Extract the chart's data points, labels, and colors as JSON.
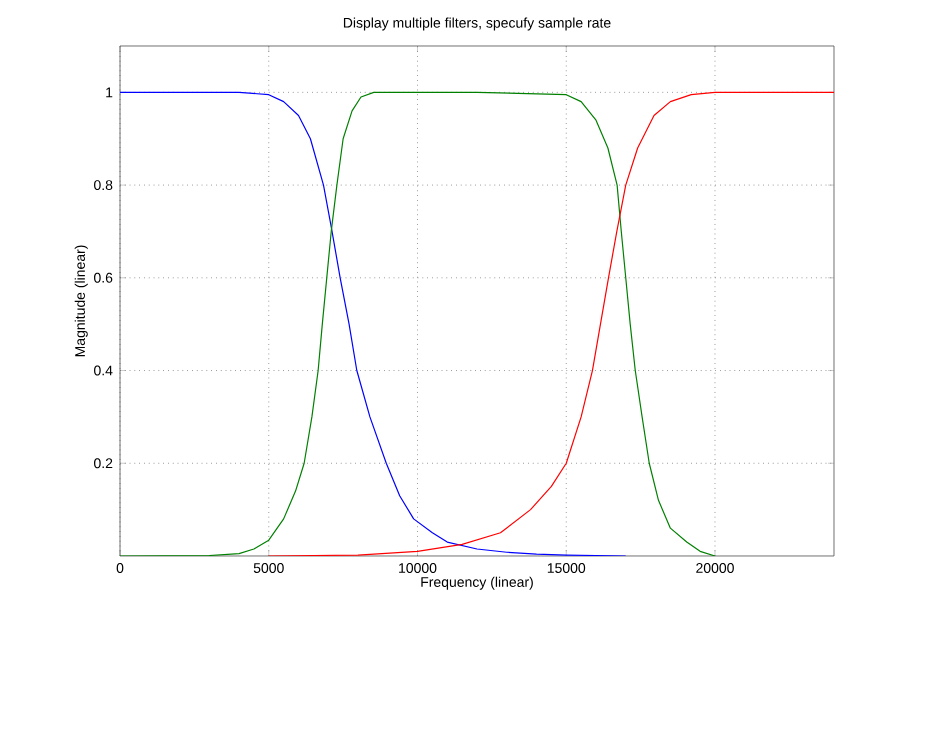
{
  "chart_data": {
    "type": "line",
    "title": "Display multiple filters, specufy sample rate",
    "xlabel": "Frequency (linear)",
    "ylabel": "Magnitude (linear)",
    "xlim": [
      0,
      24000
    ],
    "ylim": [
      0,
      1.1
    ],
    "xticks": [
      0,
      5000,
      10000,
      15000,
      20000
    ],
    "yticks": [
      0.2,
      0.4,
      0.6,
      0.8,
      1
    ],
    "grid": true,
    "legend": false,
    "marker": "none",
    "line_style": "solid",
    "series": [
      {
        "color": "#0000ff",
        "x": [
          0,
          2000,
          4000,
          5000,
          5500,
          6000,
          6400,
          6840,
          7100,
          7400,
          7700,
          7960,
          8400,
          8950,
          9400,
          9870,
          10500,
          11000,
          12000,
          13000,
          14000,
          15000,
          17000
        ],
        "values": [
          1,
          1,
          1,
          0.995,
          0.98,
          0.95,
          0.9,
          0.8,
          0.71,
          0.6,
          0.5,
          0.4,
          0.3,
          0.2,
          0.13,
          0.08,
          0.05,
          0.03,
          0.015,
          0.008,
          0.004,
          0.002,
          0
        ]
      },
      {
        "color": "#008000",
        "x": [
          0,
          3000,
          4000,
          4500,
          5000,
          5500,
          5900,
          6190,
          6450,
          6660,
          6800,
          6950,
          7100,
          7290,
          7500,
          7800,
          8100,
          8530,
          9000,
          12000,
          15000,
          15500,
          16000,
          16400,
          16710,
          16850,
          17000,
          17150,
          17320,
          17550,
          17790,
          18100,
          18500,
          19050,
          19500,
          20000
        ],
        "values": [
          0,
          0.001,
          0.005,
          0.015,
          0.034,
          0.08,
          0.14,
          0.2,
          0.3,
          0.4,
          0.5,
          0.6,
          0.7,
          0.8,
          0.9,
          0.96,
          0.99,
          1,
          1,
          1,
          0.995,
          0.98,
          0.94,
          0.88,
          0.8,
          0.7,
          0.6,
          0.5,
          0.4,
          0.3,
          0.2,
          0.12,
          0.06,
          0.03,
          0.01,
          0
        ]
      },
      {
        "color": "#ff0000",
        "x": [
          5000,
          8000,
          10000,
          11500,
          12790,
          13800,
          14500,
          15000,
          15500,
          15880,
          16150,
          16420,
          16700,
          17000,
          17400,
          17950,
          18500,
          19200,
          20000,
          24000
        ],
        "values": [
          0,
          0.002,
          0.01,
          0.025,
          0.05,
          0.1,
          0.15,
          0.2,
          0.3,
          0.4,
          0.5,
          0.6,
          0.7,
          0.8,
          0.88,
          0.95,
          0.98,
          0.995,
          1,
          1
        ]
      }
    ]
  }
}
